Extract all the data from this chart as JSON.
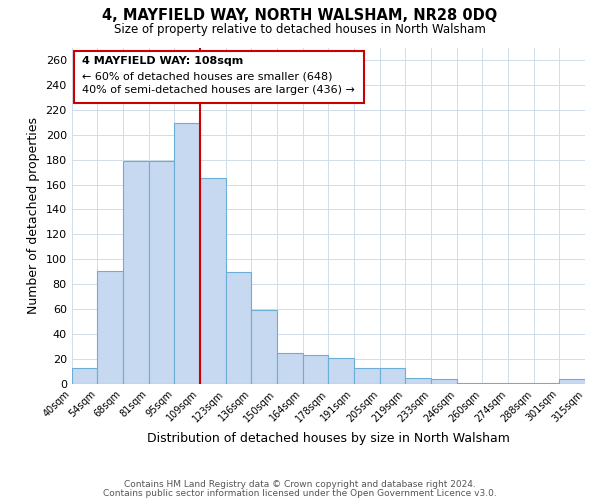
{
  "title": "4, MAYFIELD WAY, NORTH WALSHAM, NR28 0DQ",
  "subtitle": "Size of property relative to detached houses in North Walsham",
  "xlabel": "Distribution of detached houses by size in North Walsham",
  "ylabel": "Number of detached properties",
  "bar_labels": [
    "40sqm",
    "54sqm",
    "68sqm",
    "81sqm",
    "95sqm",
    "109sqm",
    "123sqm",
    "136sqm",
    "150sqm",
    "164sqm",
    "178sqm",
    "191sqm",
    "205sqm",
    "219sqm",
    "233sqm",
    "246sqm",
    "260sqm",
    "274sqm",
    "288sqm",
    "301sqm",
    "315sqm"
  ],
  "bar_values": [
    13,
    91,
    179,
    179,
    209,
    165,
    90,
    59,
    25,
    23,
    21,
    13,
    13,
    5,
    4,
    1,
    1,
    1,
    1,
    4
  ],
  "bar_color": "#c6d9f0",
  "bar_edge_color": "#6baed6",
  "vline_label_idx": 5,
  "vline_color": "#cc0000",
  "annotation_title": "4 MAYFIELD WAY: 108sqm",
  "annotation_line1": "← 60% of detached houses are smaller (648)",
  "annotation_line2": "40% of semi-detached houses are larger (436) →",
  "annotation_box_color": "#ffffff",
  "annotation_box_edge": "#cc0000",
  "ylim": [
    0,
    270
  ],
  "yticks": [
    0,
    20,
    40,
    60,
    80,
    100,
    120,
    140,
    160,
    180,
    200,
    220,
    240,
    260
  ],
  "footer1": "Contains HM Land Registry data © Crown copyright and database right 2024.",
  "footer2": "Contains public sector information licensed under the Open Government Licence v3.0.",
  "fig_width": 6.0,
  "fig_height": 5.0,
  "background_color": "#ffffff"
}
